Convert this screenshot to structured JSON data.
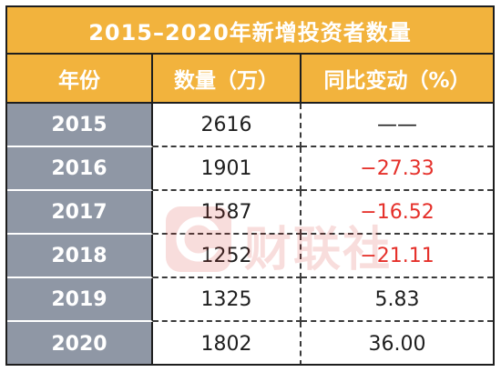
{
  "title": "2015–2020年新增投资者数量",
  "headers": {
    "year": "年份",
    "count": "数量（万）",
    "change": "同比变动（%）"
  },
  "rows": [
    {
      "year": "2015",
      "count": "2616",
      "change": "——",
      "negative": false
    },
    {
      "year": "2016",
      "count": "1901",
      "change": "−27.33",
      "negative": true
    },
    {
      "year": "2017",
      "count": "1587",
      "change": "−16.52",
      "negative": true
    },
    {
      "year": "2018",
      "count": "1252",
      "change": "−21.11",
      "negative": true
    },
    {
      "year": "2019",
      "count": "1325",
      "change": "5.83",
      "negative": false
    },
    {
      "year": "2020",
      "count": "1802",
      "change": "36.00",
      "negative": false
    }
  ],
  "watermark": {
    "text": "财联社",
    "icon": "cls-logo-icon"
  },
  "colors": {
    "header_bg": "#f2b33d",
    "year_bg": "#8f97a5",
    "negative": "#e5302a"
  }
}
